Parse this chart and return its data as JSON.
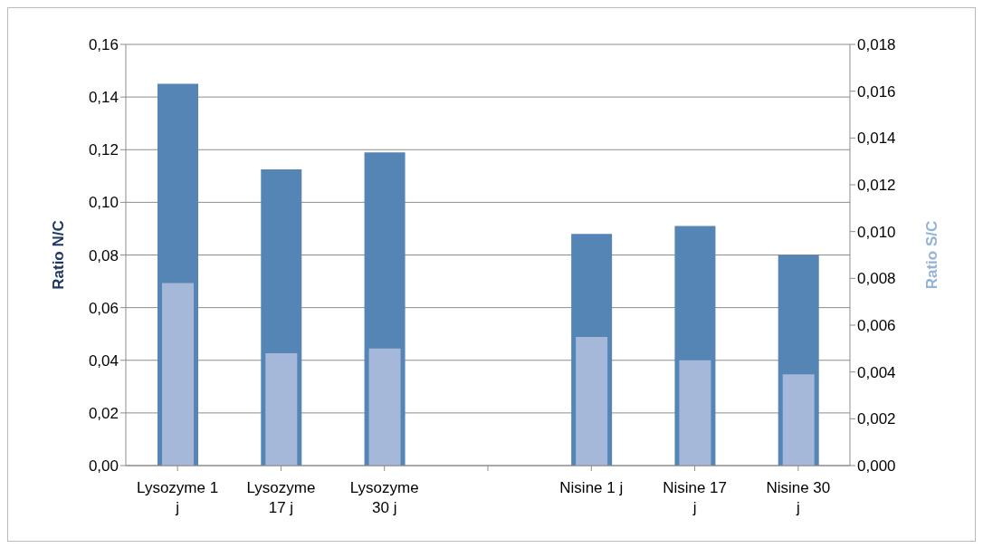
{
  "chart_data": {
    "type": "bar",
    "ylabel": "Ratio N/C",
    "y2label": "Ratio S/C",
    "categories": [
      "Lysozyme 1 j",
      "Lysozyme 17 j",
      "Lysozyme 30 j",
      null,
      "Nisine 1 j",
      "Nisine 17 j",
      "Nisine 30 j"
    ],
    "series": [
      {
        "color": "#5585b5",
        "values": [
          0.145,
          0.1125,
          0.119,
          null,
          0.088,
          0.091,
          0.08
        ]
      },
      {
        "color": "#a5b8d9",
        "axis": "y2",
        "values": [
          0.0078,
          0.0048,
          0.005,
          null,
          0.0055,
          0.0045,
          0.0039
        ]
      }
    ],
    "ylim": [
      0,
      0.16
    ],
    "yticks": [
      {
        "value": 0,
        "label": "0,00"
      },
      {
        "value": 0.02,
        "label": "0,02"
      },
      {
        "value": 0.04,
        "label": "0,04"
      },
      {
        "value": 0.06,
        "label": "0,06"
      },
      {
        "value": 0.08,
        "label": "0,08"
      },
      {
        "value": 0.1,
        "label": "0,10"
      },
      {
        "value": 0.12,
        "label": "0,12"
      },
      {
        "value": 0.14,
        "label": "0,14"
      },
      {
        "value": 0.16,
        "label": "0,16"
      }
    ],
    "y2lim": [
      0,
      0.018
    ],
    "y2ticks": [
      {
        "value": 0,
        "label": "0,000"
      },
      {
        "value": 0.002,
        "label": "0,002"
      },
      {
        "value": 0.004,
        "label": "0,004"
      },
      {
        "value": 0.006,
        "label": "0,006"
      },
      {
        "value": 0.008,
        "label": "0,008"
      },
      {
        "value": 0.01,
        "label": "0,010"
      },
      {
        "value": 0.012,
        "label": "0,012"
      },
      {
        "value": 0.014,
        "label": "0,014"
      },
      {
        "value": 0.016,
        "label": "0,016"
      },
      {
        "value": 0.018,
        "label": "0,018"
      }
    ],
    "grid": "y"
  }
}
